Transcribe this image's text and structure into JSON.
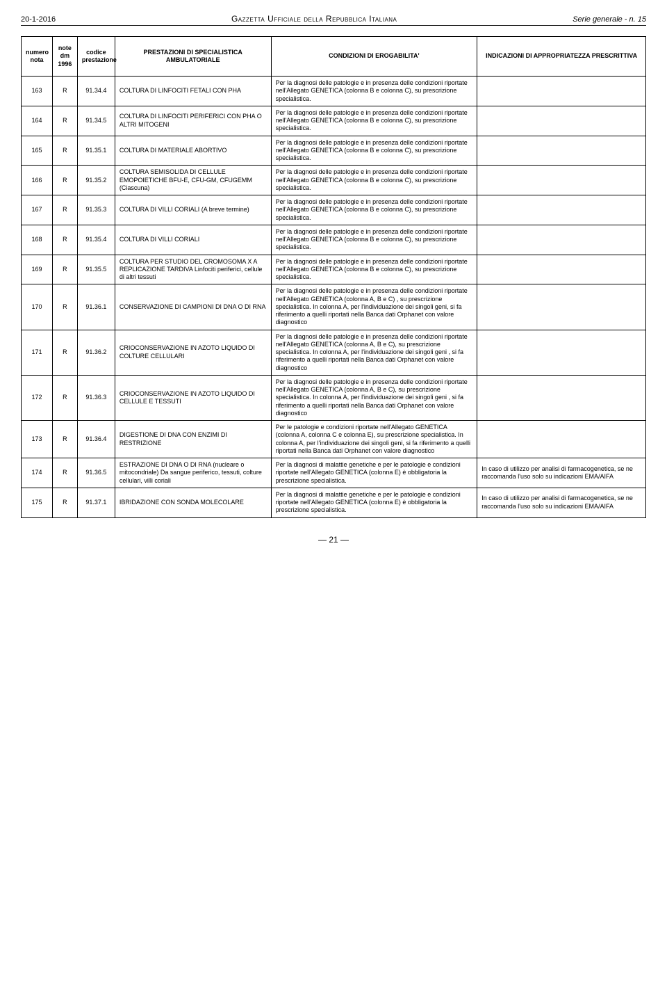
{
  "header": {
    "left": "20-1-2016",
    "center": "Gazzetta Ufficiale della Repubblica Italiana",
    "right": "Serie generale - n. 15"
  },
  "columns": [
    "numero nota",
    "note dm 1996",
    "codice prestazione",
    "PRESTAZIONI DI SPECIALISTICA AMBULATORIALE",
    "CONDIZIONI DI EROGABILITA'",
    "INDICAZIONI DI APPROPRIATEZZA PRESCRITTIVA"
  ],
  "rows": [
    {
      "n": "163",
      "note": "R",
      "code": "91.34.4",
      "prest": "COLTURA DI LINFOCITI FETALI CON PHA",
      "cond": "Per la diagnosi delle patologie e in presenza delle condizioni riportate nell'Allegato GENETICA (colonna B e colonna C), su prescrizione specialistica.",
      "ind": ""
    },
    {
      "n": "164",
      "note": "R",
      "code": "91.34.5",
      "prest": "COLTURA DI LINFOCITI PERIFERICI CON PHA O ALTRI MITOGENI",
      "cond": "Per la diagnosi delle patologie e in presenza delle condizioni riportate nell'Allegato GENETICA (colonna B e colonna C), su prescrizione specialistica.",
      "ind": ""
    },
    {
      "n": "165",
      "note": "R",
      "code": "91.35.1",
      "prest": "COLTURA DI MATERIALE ABORTIVO",
      "cond": "Per la diagnosi delle patologie e in presenza delle condizioni riportate nell'Allegato GENETICA (colonna B e colonna C), su prescrizione specialistica.",
      "ind": ""
    },
    {
      "n": "166",
      "note": "R",
      "code": "91.35.2",
      "prest": "COLTURA SEMISOLIDA DI CELLULE EMOPOIETICHE  BFU-E, CFU-GM, CFUGEMM (Ciascuna)",
      "cond": "Per la diagnosi delle patologie e in presenza delle condizioni riportate nell'Allegato GENETICA (colonna B e colonna C), su prescrizione specialistica.",
      "ind": ""
    },
    {
      "n": "167",
      "note": "R",
      "code": "91.35.3",
      "prest": "COLTURA DI VILLI CORIALI (A breve termine)",
      "cond": "Per la diagnosi delle patologie e in presenza delle condizioni riportate nell'Allegato GENETICA (colonna B e colonna C), su prescrizione specialistica.",
      "ind": ""
    },
    {
      "n": "168",
      "note": "R",
      "code": "91.35.4",
      "prest": "COLTURA DI VILLI CORIALI",
      "cond": "Per la diagnosi delle patologie e in presenza delle condizioni riportate nell'Allegato GENETICA (colonna B e colonna C), su prescrizione specialistica.",
      "ind": ""
    },
    {
      "n": "169",
      "note": "R",
      "code": "91.35.5",
      "prest": "COLTURA PER STUDIO DEL CROMOSOMA X A REPLICAZIONE TARDIVA  Linfociti periferici, cellule di altri tessuti",
      "cond": "Per la diagnosi delle patologie e in presenza delle condizioni riportate nell'Allegato GENETICA (colonna B e colonna C), su prescrizione specialistica.",
      "ind": ""
    },
    {
      "n": "170",
      "note": "R",
      "code": "91.36.1",
      "prest": "CONSERVAZIONE DI CAMPIONI DI DNA O DI RNA",
      "cond": "Per la diagnosi delle patologie e in presenza delle condizioni riportate nell'Allegato GENETICA (colonna A, B e C) , su prescrizione specialistica. In colonna A, per l'individuazione dei singoli geni, si fa riferimento a quelli riportati nella Banca dati Orphanet con valore diagnostico",
      "ind": ""
    },
    {
      "n": "171",
      "note": "R",
      "code": "91.36.2",
      "prest": "CRIOCONSERVAZIONE IN AZOTO LIQUIDO DI COLTURE CELLULARI",
      "cond": "Per la diagnosi delle patologie e in presenza delle condizioni riportate nell'Allegato GENETICA (colonna A, B e C), su prescrizione specialistica. In colonna A, per l'individuazione dei singoli geni , si fa riferimento a quelli riportati nella Banca dati Orphanet con valore diagnostico",
      "ind": ""
    },
    {
      "n": "172",
      "note": "R",
      "code": "91.36.3",
      "prest": "CRIOCONSERVAZIONE IN AZOTO LIQUIDO DI CELLULE E TESSUTI",
      "cond": "Per la diagnosi delle patologie e in presenza delle condizioni riportate nell'Allegato GENETICA (colonna A, B e C), su prescrizione specialistica. In colonna A, per l'individuazione dei singoli geni , si fa riferimento a quelli riportati nella Banca dati Orphanet con valore diagnostico",
      "ind": ""
    },
    {
      "n": "173",
      "note": "R",
      "code": "91.36.4",
      "prest": "DIGESTIONE DI DNA CON ENZIMI DI RESTRIZIONE",
      "cond": "Per le patologie e condizioni riportate nell'Allegato GENETICA (colonna A, colonna C e colonna E), su prescrizione specialistica. In colonna A, per l'individuazione dei singoli geni, si fa riferimento a quelli riportati nella Banca dati Orphanet con valore diagnostico",
      "ind": ""
    },
    {
      "n": "174",
      "note": "R",
      "code": "91.36.5",
      "prest": "ESTRAZIONE DI DNA O DI RNA  (nucleare o mitocondriale)  Da sangue periferico, tessuti, colture cellulari, villi coriali",
      "cond": "Per la diagnosi di malattie genetiche e per le patologie e condizioni riportate nell'Allegato GENETICA (colonna E) è obbligatoria la prescrizione  specialistica.",
      "ind": "In caso di utilizzo per analisi di farmacogenetica, se ne raccomanda l'uso solo su indicazioni EMA/AIFA"
    },
    {
      "n": "175",
      "note": "R",
      "code": "91.37.1",
      "prest": "IBRIDAZIONE CON SONDA MOLECOLARE",
      "cond": "Per la diagnosi di malattie genetiche e per le patologie e condizioni riportate nell'Allegato GENETICA (colonna E) è obbligatoria la prescrizione  specialistica.",
      "ind": "In caso di utilizzo per analisi di farmacogenetica, se ne raccomanda l'uso solo su indicazioni EMA/AIFA"
    }
  ],
  "page_number": "— 21 —"
}
